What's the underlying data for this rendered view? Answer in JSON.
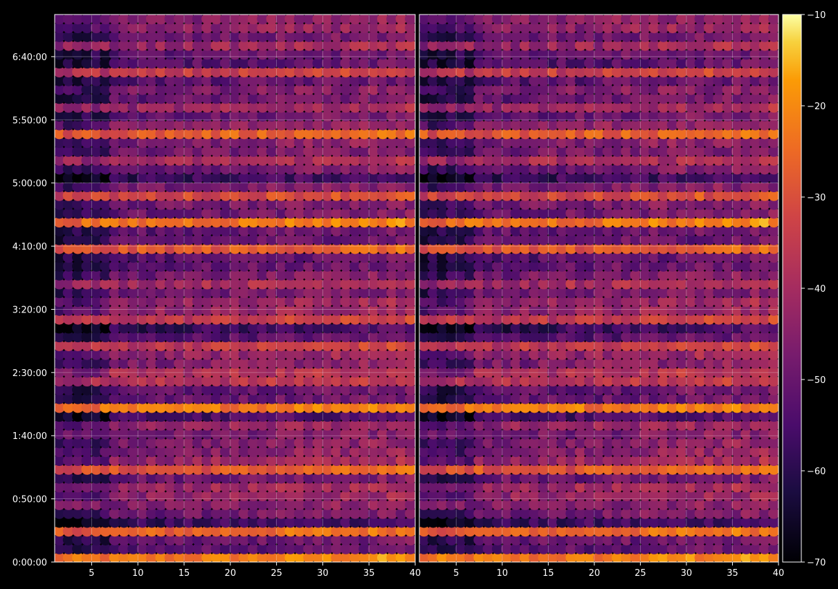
{
  "chart_data": {
    "type": "heatmap",
    "title": "",
    "xlabel": "",
    "ylabel": "",
    "grid": true,
    "colormap": "inferno",
    "panels": [
      {
        "name": "",
        "xlim": [
          1,
          40
        ],
        "ylim_seconds": [
          0,
          26000
        ],
        "x_ticks": [
          5,
          10,
          15,
          20,
          25,
          30,
          35,
          40
        ],
        "x_tick_labels": [
          "5",
          "10",
          "15",
          "20",
          "25",
          "30",
          "35",
          "40"
        ]
      },
      {
        "name": "",
        "xlim": [
          1,
          40
        ],
        "ylim_seconds": [
          0,
          26000
        ],
        "x_ticks": [
          5,
          10,
          15,
          20,
          25,
          30,
          35,
          40
        ],
        "x_tick_labels": [
          "5",
          "10",
          "15",
          "20",
          "25",
          "30",
          "35",
          "40"
        ]
      }
    ],
    "y_ticks_seconds": [
      0,
      3000,
      6000,
      9000,
      12000,
      15000,
      18000,
      21000,
      24000
    ],
    "y_tick_labels": [
      "0:00:00",
      "0:50:00",
      "1:40:00",
      "2:30:00",
      "3:20:00",
      "4:10:00",
      "5:00:00",
      "5:50:00",
      "6:40:00"
    ],
    "colorbar": {
      "range": [
        -70,
        -10
      ],
      "ticks": [
        -70,
        -60,
        -50,
        -40,
        -30,
        -20,
        -10
      ],
      "tick_labels": [
        "−70",
        "−60",
        "−50",
        "−40",
        "−30",
        "−20",
        "−10"
      ]
    },
    "bright_rows_seconds": [
      200,
      1500,
      2900,
      4500,
      5900,
      7400,
      8800,
      10300,
      11600,
      13300,
      14800,
      16200,
      17500,
      18900,
      20300,
      21700,
      23100,
      24400
    ],
    "value_range": [
      -70,
      -12
    ]
  }
}
